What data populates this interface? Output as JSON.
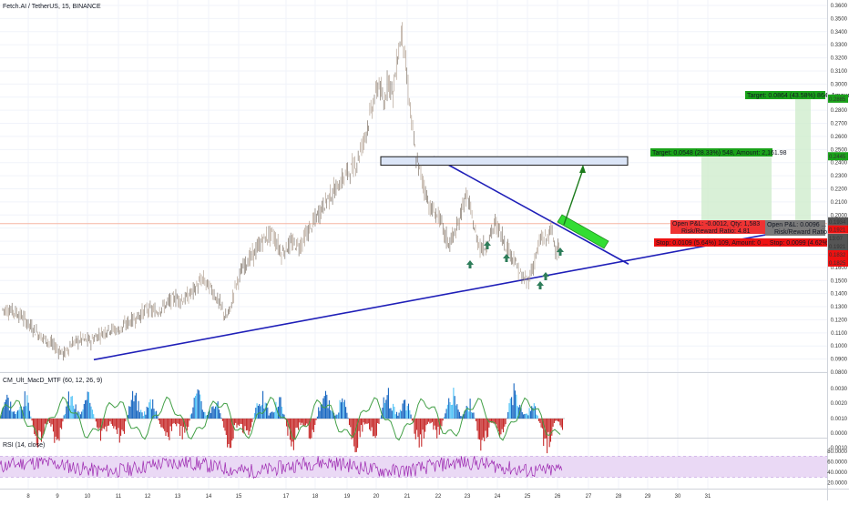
{
  "header": {
    "symbol": "Fetch.AI / TetherUS, 15, BINANCE"
  },
  "indicators": {
    "macd_title": "CM_Ult_MacD_MTF (60, 12, 26, 9)",
    "rsi_title": "RSI (14, close)"
  },
  "colors": {
    "candle_up": "#26a69a",
    "candle_down": "#ef5350",
    "price_candle": "#8c7b6a",
    "trendline": "#1f1fb8",
    "zone_fill": "#dbe5f7",
    "target_green": "#1aa21a",
    "stop_red": "#ee1111",
    "rsi_line": "#9c27b0",
    "rsi_band": "#ead9f5",
    "macd_blue": "#1565c0",
    "macd_red": "#c62828",
    "macd_green": "#43a047",
    "entry_gray": "#7a7a7a"
  },
  "chart_data": {
    "type": "candlestick",
    "x_axis_labels": [
      "8",
      "9",
      "10",
      "11",
      "12",
      "13",
      "14",
      "15",
      "17",
      "18",
      "19",
      "20",
      "21",
      "22",
      "23",
      "24",
      "25",
      "26",
      "27",
      "28",
      "29",
      "30",
      "31"
    ],
    "price_ticks": [
      "0.3600",
      "0.3500",
      "0.3400",
      "0.3300",
      "0.3200",
      "0.3100",
      "0.3000",
      "0.2900",
      "0.2800",
      "0.2700",
      "0.2600",
      "0.2500",
      "0.2400",
      "0.2300",
      "0.2200",
      "0.2100",
      "0.2000",
      "0.1900",
      "0.1800",
      "0.1700",
      "0.1600",
      "0.1500",
      "0.1400",
      "0.1300",
      "0.1200",
      "0.1100",
      "0.1000",
      "0.0900",
      "0.0800"
    ],
    "price_range": [
      0.08,
      0.36
    ],
    "price_path": [
      [
        0,
        0.128
      ],
      [
        4,
        0.127
      ],
      [
        8,
        0.123
      ],
      [
        12,
        0.115
      ],
      [
        16,
        0.108
      ],
      [
        20,
        0.103
      ],
      [
        24,
        0.097
      ],
      [
        26,
        0.094
      ],
      [
        27,
        0.095
      ],
      [
        30,
        0.102
      ],
      [
        34,
        0.105
      ],
      [
        38,
        0.104
      ],
      [
        42,
        0.109
      ],
      [
        46,
        0.113
      ],
      [
        50,
        0.112
      ],
      [
        54,
        0.118
      ],
      [
        58,
        0.122
      ],
      [
        62,
        0.128
      ],
      [
        66,
        0.126
      ],
      [
        70,
        0.131
      ],
      [
        74,
        0.137
      ],
      [
        78,
        0.135
      ],
      [
        82,
        0.142
      ],
      [
        86,
        0.151
      ],
      [
        90,
        0.143
      ],
      [
        94,
        0.13
      ],
      [
        96,
        0.121
      ],
      [
        98,
        0.128
      ],
      [
        100,
        0.145
      ],
      [
        104,
        0.162
      ],
      [
        108,
        0.17
      ],
      [
        112,
        0.181
      ],
      [
        116,
        0.186
      ],
      [
        120,
        0.171
      ],
      [
        124,
        0.178
      ],
      [
        128,
        0.177
      ],
      [
        132,
        0.189
      ],
      [
        136,
        0.201
      ],
      [
        140,
        0.213
      ],
      [
        144,
        0.221
      ],
      [
        148,
        0.232
      ],
      [
        152,
        0.238
      ],
      [
        156,
        0.261
      ],
      [
        160,
        0.289
      ],
      [
        162,
        0.301
      ],
      [
        164,
        0.283
      ],
      [
        166,
        0.305
      ],
      [
        168,
        0.292
      ],
      [
        170,
        0.321
      ],
      [
        172,
        0.341
      ],
      [
        174,
        0.304
      ],
      [
        176,
        0.271
      ],
      [
        178,
        0.242
      ],
      [
        180,
        0.231
      ],
      [
        184,
        0.205
      ],
      [
        188,
        0.198
      ],
      [
        190,
        0.186
      ],
      [
        192,
        0.178
      ],
      [
        194,
        0.184
      ],
      [
        196,
        0.191
      ],
      [
        198,
        0.209
      ],
      [
        200,
        0.214
      ],
      [
        202,
        0.198
      ],
      [
        204,
        0.182
      ],
      [
        206,
        0.175
      ],
      [
        208,
        0.176
      ],
      [
        210,
        0.185
      ],
      [
        212,
        0.193
      ],
      [
        214,
        0.188
      ],
      [
        216,
        0.179
      ],
      [
        218,
        0.173
      ],
      [
        220,
        0.167
      ],
      [
        222,
        0.158
      ],
      [
        224,
        0.151
      ],
      [
        226,
        0.149
      ],
      [
        228,
        0.159
      ],
      [
        230,
        0.172
      ],
      [
        232,
        0.183
      ],
      [
        234,
        0.181
      ],
      [
        236,
        0.189
      ],
      [
        238,
        0.176
      ],
      [
        240,
        0.172
      ]
    ],
    "horizontal_lines": {
      "current_price": "0.1921",
      "orange_level": "0.1934"
    },
    "resistance_zone": {
      "low": "0.2380",
      "high": "0.2440"
    },
    "targets": [
      {
        "label": "Target: 0.0548 (28.33%) 548, Amount: 2,161.98",
        "price_tag": "0.2445"
      },
      {
        "label": "Target: 0.0864 (43.58%) 864, Amount",
        "price_tag": "0.2885"
      }
    ],
    "orders": [
      {
        "label": "Open P&L: -0.0012, Qty: 1,583\nRisk/Reward Ratio: 4.81"
      },
      {
        "label": "Stop: 0.0109 (5.64%) 109, Amount: 0 ...  Stop: 0.0099 (4.62%)"
      },
      {
        "label": "Open P&L: 0.0096 ...\nRisk/Reward Ratio"
      }
    ],
    "right_price_tags": [
      {
        "text": "0.2885",
        "color": "#1aa21a"
      },
      {
        "text": "0.2445",
        "color": "#1aa21a"
      },
      {
        "text": "0.1934",
        "color": "#555555"
      },
      {
        "text": "0.1921",
        "color": "#ee1111"
      },
      {
        "text": "13:07",
        "color": "#555555"
      },
      {
        "text": "0.1921",
        "color": "#555555"
      },
      {
        "text": "0.1832",
        "color": "#ee1111"
      },
      {
        "text": "0.1825",
        "color": "#ee1111"
      }
    ],
    "macd_ticks": [
      "0.0030",
      "0.0020",
      "0.0010",
      "0.0000",
      "-0.0010"
    ],
    "rsi_ticks": [
      "80.0000",
      "60.0000",
      "40.0000",
      "20.0000"
    ],
    "rsi_band": [
      30,
      70
    ],
    "grid": true
  }
}
